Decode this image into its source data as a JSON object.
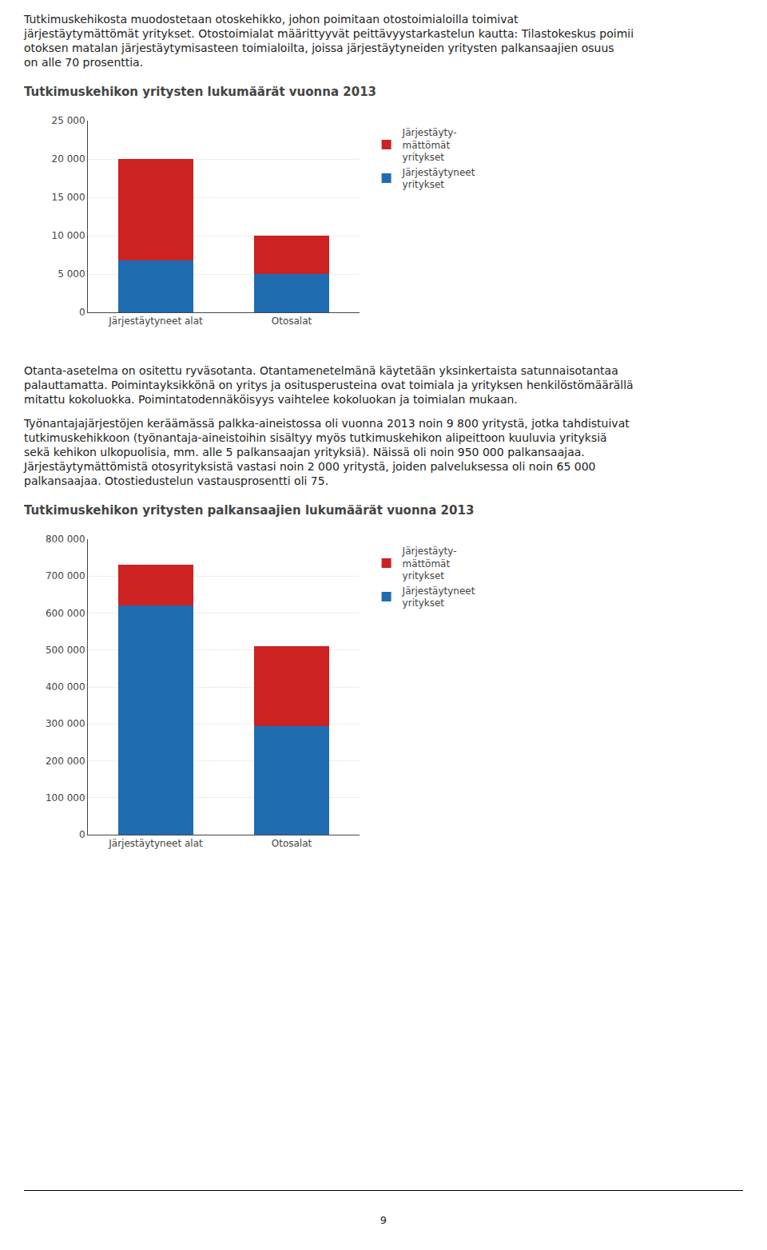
{
  "paragraphs": [
    [
      "Tutkimuskehikosta muodostetaan otoskehikko, johon poimitaan otostoimialoilla toimivat",
      "järjestäytymättömät yritykset. Otostoimialat määrittyyvät peittävyystarkastelun kautta: Tilastokeskus poimii",
      "otoksen matalan järjestäytymisasteen toimialoilta, joissa järjestäytyneiden yritysten palkansaajien osuus",
      "on alle 70 prosenttia."
    ],
    [
      "Otanta-asetelma on ositettu ryväsotanta. Otantamenetelmänä käytetään yksinkertaista satunnaisotantaa",
      "palauttamatta. Poimintayksikkönä on yritys ja ositusperusteina ovat toimiala ja yrityksen henkilöstömäärällä",
      "mitattu kokoluokka. Poimintatodennäköisyys vaihtelee kokoluokan ja toimialan mukaan."
    ],
    [
      "Työnantajajärjestöjen keräämässä palkka-aineistossa oli vuonna 2013 noin 9 800 yritystä, jotka tahdistuivat",
      "tutkimuskehikkoon (työnantaja-aineistoihin sisältyy myös tutkimuskehikon alipeittoon kuuluvia yrityksiä",
      "sekä kehikon ulkopuolisia, mm. alle 5 palkansaajan yrityksiä). Näissä oli noin 950 000 palkansaajaa.",
      "Järjestäytymättömistä otosyrityksistä vastasi noin 2 000 yritystä, joiden palveluksessa oli noin 65 000",
      "palkansaajaa. Otostiedustelun vastausprosentti oli 75."
    ]
  ],
  "page_number": "9",
  "chart_data": [
    {
      "type": "bar",
      "stacked": true,
      "grid": true,
      "legend": "upper right",
      "title": "Tutkimuskehikon yritysten lukumäärät vuonna 2013",
      "categories": [
        "Järjestäytyneet alat",
        "Otosalat"
      ],
      "series": [
        {
          "name": "Järjestäytyneet\nyritykset",
          "color": "#1F6CB0",
          "values": [
            6800,
            5000
          ]
        },
        {
          "name": "Järjestäyty-\nmättömät\nyritykset",
          "color": "#CC2222",
          "values": [
            13200,
            5000
          ]
        }
      ],
      "ylim": [
        0,
        25000
      ],
      "yticks": [
        0,
        {
          "value": 5000,
          "label": "5 000"
        },
        {
          "value": 10000,
          "label": "10 000"
        },
        {
          "value": 15000,
          "label": "15 000"
        },
        {
          "value": 20000,
          "label": "20 000"
        },
        {
          "value": 25000,
          "label": "25 000"
        }
      ]
    },
    {
      "type": "bar",
      "stacked": true,
      "grid": true,
      "legend": "upper right",
      "title": "Tutkimuskehikon yritysten palkansaajien lukumäärät vuonna 2013",
      "categories": [
        "Järjestäytyneet alat",
        "Otosalat"
      ],
      "series": [
        {
          "name": "Järjestäytyneet\nyritykset",
          "color": "#1F6CB0",
          "values": [
            620000,
            295000
          ]
        },
        {
          "name": "Järjestäyty-\nmättömät\nyritykset",
          "color": "#CC2222",
          "values": [
            110000,
            215000
          ]
        }
      ],
      "ylim": [
        0,
        800000
      ],
      "yticks": [
        0,
        {
          "value": 100000,
          "label": "100 000"
        },
        {
          "value": 200000,
          "label": "200 000"
        },
        {
          "value": 300000,
          "label": "300 000"
        },
        {
          "value": 400000,
          "label": "400 000"
        },
        {
          "value": 500000,
          "label": "500 000"
        },
        {
          "value": 600000,
          "label": "600 000"
        },
        {
          "value": 700000,
          "label": "700 000"
        },
        {
          "value": 800000,
          "label": "800 000"
        }
      ]
    }
  ]
}
